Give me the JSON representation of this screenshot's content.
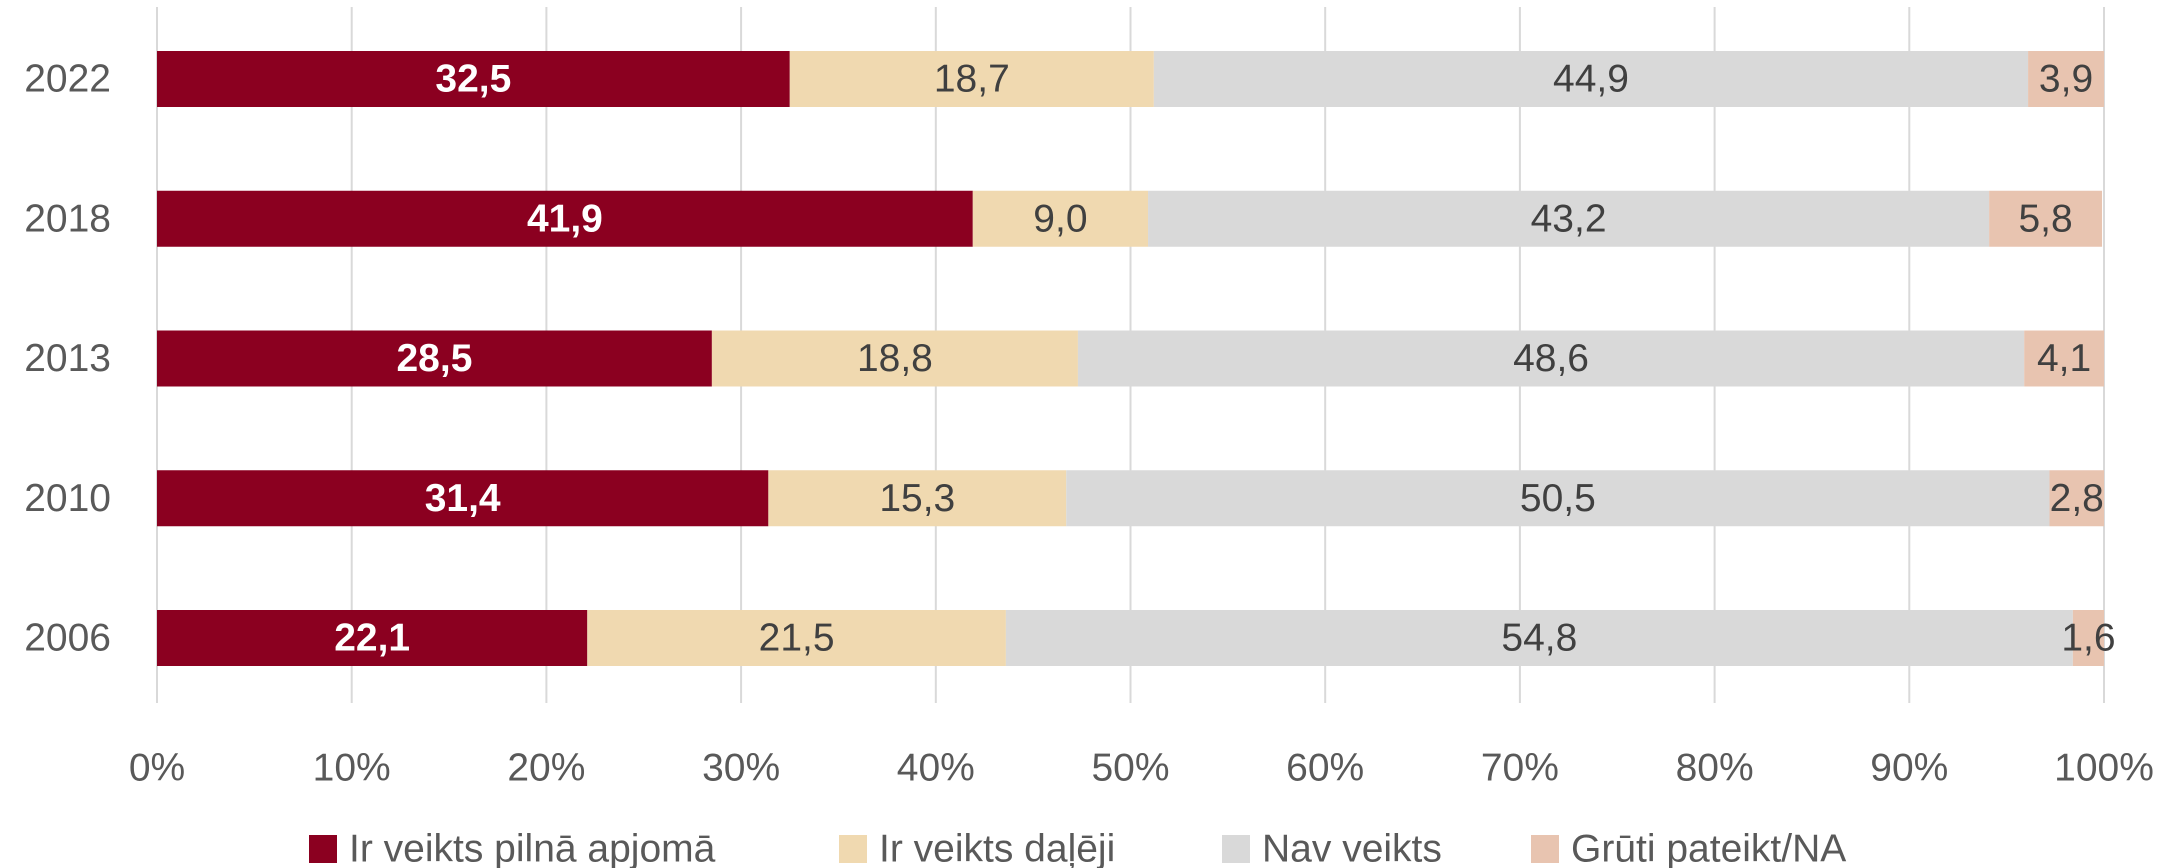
{
  "chart_data": {
    "type": "stacked_bar_horizontal",
    "categories": [
      "2022",
      "2018",
      "2013",
      "2010",
      "2006"
    ],
    "series": [
      {
        "name": "Ir veikts pilnā apjomā",
        "color": "#8b0020",
        "values": [
          32.5,
          41.9,
          28.5,
          31.4,
          22.1
        ],
        "value_labels": [
          "32,5",
          "41,9",
          "28,5",
          "31,4",
          "22,1"
        ]
      },
      {
        "name": "Ir veikts daļēji",
        "color": "#f0d9b0",
        "values": [
          18.7,
          9.0,
          18.8,
          15.3,
          21.5
        ],
        "value_labels": [
          "18,7",
          "9,0",
          "18,8",
          "15,3",
          "21,5"
        ]
      },
      {
        "name": "Nav veikts",
        "color": "#d9d9d9",
        "values": [
          44.9,
          43.2,
          48.6,
          50.5,
          54.8
        ],
        "value_labels": [
          "44,9",
          "43,2",
          "48,6",
          "50,5",
          "54,8"
        ]
      },
      {
        "name": "Grūti pateikt/NA",
        "color": "#e8c4b0",
        "values": [
          3.9,
          5.8,
          4.1,
          2.8,
          1.6
        ],
        "value_labels": [
          "3,9",
          "5,8",
          "4,1",
          "2,8",
          "1,6"
        ]
      }
    ],
    "xlim": [
      0,
      100
    ],
    "xticks": [
      {
        "value": 0,
        "label": "0%"
      },
      {
        "value": 10,
        "label": "10%"
      },
      {
        "value": 20,
        "label": "20%"
      },
      {
        "value": 30,
        "label": "30%"
      },
      {
        "value": 40,
        "label": "40%"
      },
      {
        "value": 50,
        "label": "50%"
      },
      {
        "value": 60,
        "label": "60%"
      },
      {
        "value": 70,
        "label": "70%"
      },
      {
        "value": 80,
        "label": "80%"
      },
      {
        "value": 90,
        "label": "90%"
      },
      {
        "value": 100,
        "label": "100%"
      }
    ],
    "grid": true,
    "legend": "bottom"
  }
}
